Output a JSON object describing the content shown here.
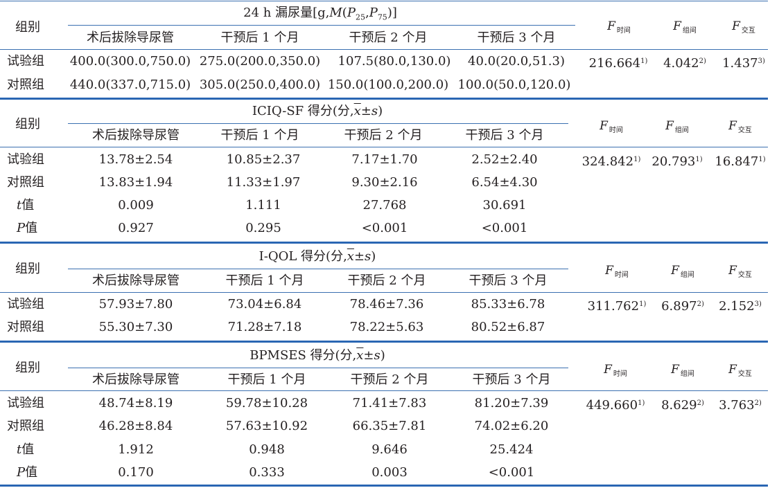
{
  "group_label": "组别",
  "periods": [
    "术后拔除导尿管",
    "干预后 1 个月",
    "干预后 2 个月",
    "干预后 3 个月"
  ],
  "f_labels": {
    "f": "F",
    "time": "时间",
    "group": "组间",
    "interaction": "交互"
  },
  "t_label": {
    "sym": "t",
    "text": "值"
  },
  "p_label": {
    "sym": "P",
    "text": "值"
  },
  "tables": [
    {
      "title": "24 h 漏尿量[g,M(P25,P75)]",
      "rows": [
        {
          "group": "试验组",
          "values": [
            "400.0(300.0,750.0)",
            "275.0(200.0,350.0)",
            "107.5(80.0,130.0)",
            "40.0(20.0,51.3)"
          ]
        },
        {
          "group": "对照组",
          "values": [
            "440.0(337.0,715.0)",
            "305.0(250.0,400.0)",
            "150.0(100.0,200.0)",
            "100.0(50.0,120.0)"
          ]
        }
      ],
      "f_values": [
        {
          "v": "216.664",
          "s": "1)"
        },
        {
          "v": "4.042",
          "s": "2)"
        },
        {
          "v": "1.437",
          "s": "3)"
        }
      ]
    },
    {
      "title": "ICIQ-SF 得分(分,x̄±s)",
      "rows": [
        {
          "group": "试验组",
          "values": [
            "13.78±2.54",
            "10.85±2.37",
            "7.17±1.70",
            "2.52±2.40"
          ]
        },
        {
          "group": "对照组",
          "values": [
            "13.83±1.94",
            "11.33±1.97",
            "9.30±2.16",
            "6.54±4.30"
          ]
        }
      ],
      "t_values": [
        "0.009",
        "1.111",
        "27.768",
        "30.691"
      ],
      "p_values": [
        "0.927",
        "0.295",
        "<0.001",
        "<0.001"
      ],
      "f_values": [
        {
          "v": "324.842",
          "s": "1)"
        },
        {
          "v": "20.793",
          "s": "1)"
        },
        {
          "v": "16.847",
          "s": "1)"
        }
      ]
    },
    {
      "title": "I-QOL 得分(分,x̄±s)",
      "rows": [
        {
          "group": "试验组",
          "values": [
            "57.93±7.80",
            "73.04±6.84",
            "78.46±7.36",
            "85.33±6.78"
          ]
        },
        {
          "group": "对照组",
          "values": [
            "55.30±7.30",
            "71.28±7.18",
            "78.22±5.63",
            "80.52±6.87"
          ]
        }
      ],
      "f_values": [
        {
          "v": "311.762",
          "s": "1)"
        },
        {
          "v": "6.897",
          "s": "2)"
        },
        {
          "v": "2.152",
          "s": "3)"
        }
      ]
    },
    {
      "title": "BPMSES 得分(分,x̄±s)",
      "rows": [
        {
          "group": "试验组",
          "values": [
            "48.74±8.19",
            "59.78±10.28",
            "71.41±7.83",
            "81.20±7.39"
          ]
        },
        {
          "group": "对照组",
          "values": [
            "46.28±8.84",
            "57.63±10.92",
            "66.35±7.81",
            "74.02±6.20"
          ]
        }
      ],
      "t_values": [
        "1.912",
        "0.948",
        "9.646",
        "25.424"
      ],
      "p_values": [
        "0.170",
        "0.333",
        "0.003",
        "<0.001"
      ],
      "f_values": [
        {
          "v": "449.660",
          "s": "1)"
        },
        {
          "v": "8.629",
          "s": "2)"
        },
        {
          "v": "3.763",
          "s": "2)"
        }
      ]
    }
  ]
}
